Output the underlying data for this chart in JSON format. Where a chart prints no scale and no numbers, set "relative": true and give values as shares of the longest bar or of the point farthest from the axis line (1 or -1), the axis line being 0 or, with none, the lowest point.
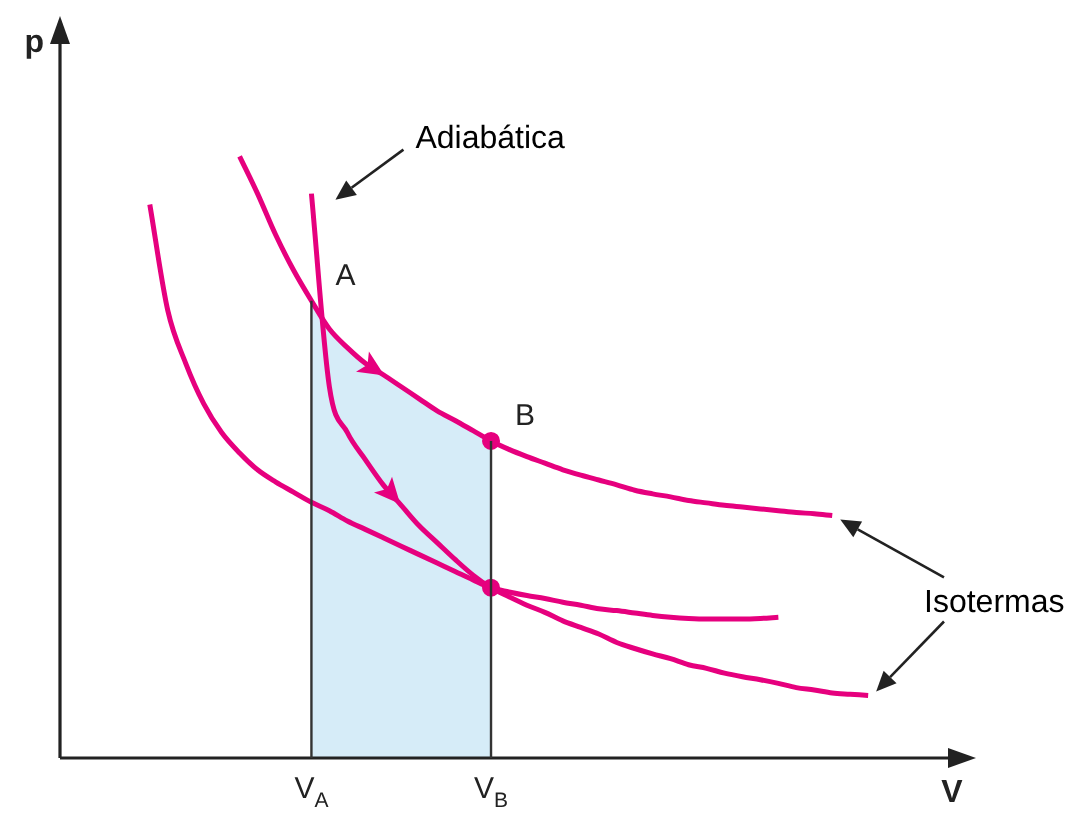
{
  "chart_data": {
    "type": "line",
    "relative": true,
    "xlabel": "V",
    "ylabel": "p",
    "legend": false,
    "marker": "none",
    "categories": [
      null,
      null,
      null,
      null,
      null,
      null,
      null,
      null,
      null,
      null,
      null,
      null,
      null,
      null,
      "V$_{A}$",
      null,
      null,
      null,
      null,
      null,
      null,
      null,
      null,
      null,
      "V$_{B}$",
      null,
      null,
      null,
      null,
      null,
      null,
      null,
      null,
      null,
      null,
      null,
      null,
      null,
      null,
      null,
      null,
      null,
      null,
      null,
      null,
      null,
      null,
      null,
      null,
      null
    ],
    "annotations": [
      "Adiabática",
      "Isotermas",
      {
        "text": "A",
        "x": "V$_{A}$",
        "y": 0.76
      },
      {
        "text": "B",
        "x": "V$_{B}$",
        "y": 0.527
      }
    ],
    "series": [
      {
        "color": "#e6007e",
        "values": [
          null,
          null,
          null,
          null,
          null,
          null,
          null,
          null,
          null,
          null,
          1.0,
          0.938,
          0.87,
          0.811,
          0.76,
          0.713,
          0.682,
          0.656,
          0.637,
          0.617,
          0.597,
          0.577,
          0.561,
          0.544,
          0.527,
          0.513,
          0.501,
          0.49,
          0.479,
          0.47,
          0.462,
          0.454,
          0.445,
          0.439,
          0.434,
          0.428,
          0.424,
          0.42,
          0.417,
          0.414,
          0.411,
          0.408,
          0.406,
          0.403,
          null,
          null,
          null,
          null,
          null,
          null
        ]
      },
      {
        "color": "#e6007e",
        "values": [
          null,
          null,
          null,
          null,
          null,
          0.92,
          0.744,
          0.656,
          0.589,
          0.541,
          0.507,
          0.479,
          0.459,
          0.442,
          0.425,
          0.411,
          0.394,
          0.38,
          0.366,
          0.352,
          0.338,
          0.324,
          0.31,
          0.296,
          0.283,
          0.276,
          0.27,
          0.265,
          0.259,
          0.254,
          0.248,
          0.245,
          0.241,
          0.237,
          0.234,
          0.232,
          0.231,
          0.231,
          0.231,
          0.232,
          0.234,
          null,
          null,
          null,
          null,
          null,
          null,
          null,
          null,
          null
        ]
      },
      {
        "color": "#e6007e",
        "values": [
          null,
          null,
          null,
          null,
          null,
          null,
          null,
          null,
          null,
          null,
          null,
          null,
          null,
          null,
          0.938,
          0.617,
          0.541,
          0.496,
          0.454,
          0.42,
          0.386,
          0.358,
          0.33,
          0.304,
          0.283,
          0.268,
          0.254,
          0.242,
          0.228,
          0.217,
          0.206,
          0.192,
          0.182,
          0.173,
          0.165,
          0.155,
          0.149,
          0.141,
          0.135,
          0.13,
          0.124,
          0.117,
          0.113,
          0.108,
          0.106,
          0.104,
          null,
          null,
          null,
          null
        ]
      },
      {
        "type": "area",
        "color": "#d6ecf8",
        "values": [
          null,
          null,
          null,
          null,
          null,
          null,
          null,
          null,
          null,
          null,
          null,
          null,
          null,
          null,
          0.76,
          0.713,
          0.682,
          0.656,
          0.637,
          0.617,
          0.597,
          0.577,
          0.561,
          0.544,
          0.527,
          null,
          null,
          null,
          null,
          null,
          null,
          null,
          null,
          null,
          null,
          null,
          null,
          null,
          null,
          null,
          null,
          null,
          null,
          null,
          null,
          null,
          null,
          null,
          null,
          null
        ]
      },
      {
        "type": "scatter",
        "marker": "circle",
        "color": "#e6007e",
        "x": [
          "V$_{B}$",
          "V$_{B}$"
        ],
        "values": [
          0.527,
          0.283
        ]
      }
    ]
  }
}
